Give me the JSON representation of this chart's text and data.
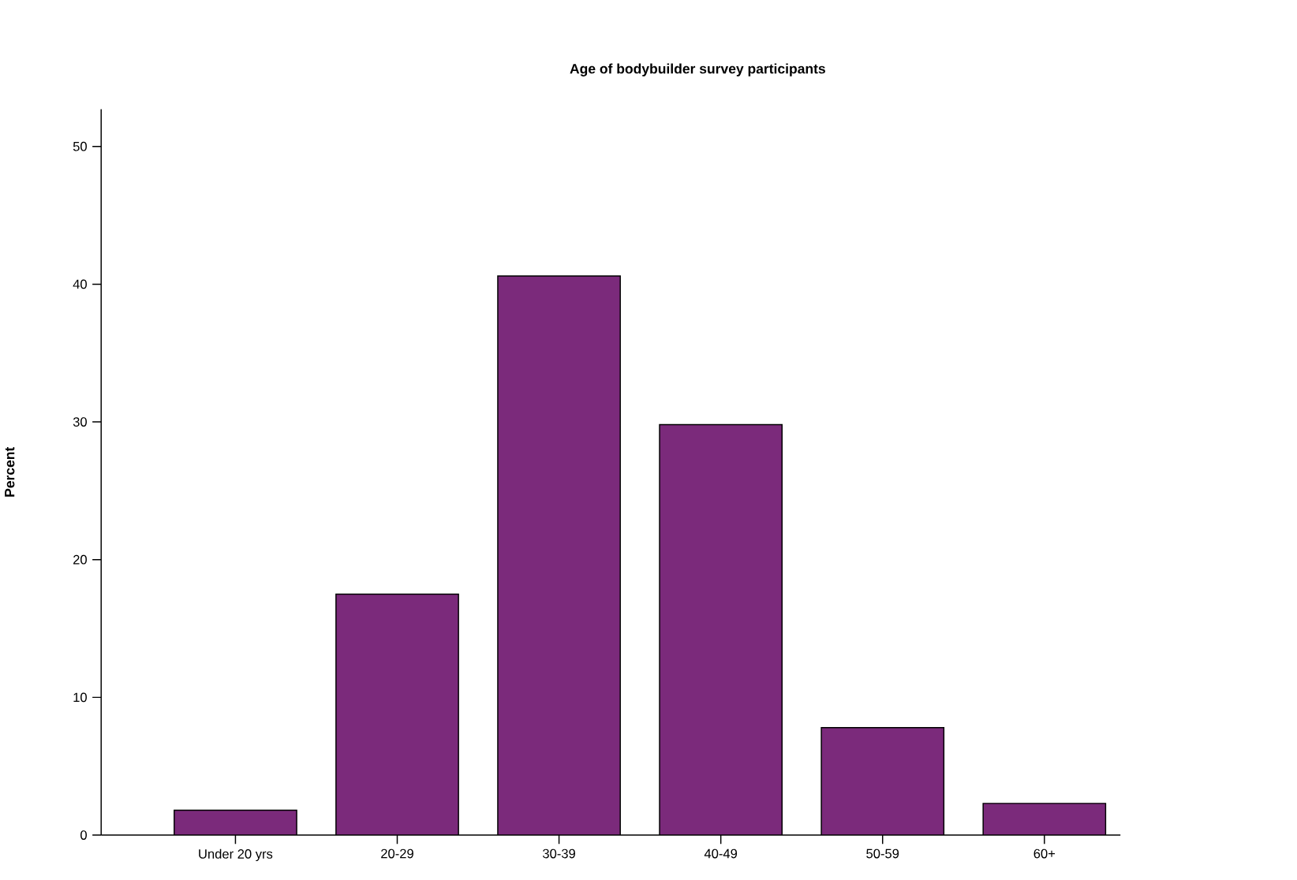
{
  "chart_data": {
    "type": "bar",
    "title": "Age of bodybuilder survey participants",
    "ylabel": "Percent",
    "categories": [
      "Under 20 yrs",
      "20-29",
      "30-39",
      "40-49",
      "50-59",
      "60+"
    ],
    "values": [
      1.8,
      17.5,
      40.6,
      29.8,
      7.8,
      2.3
    ],
    "color": "#7b2a7b",
    "ylim": [
      0,
      52.7
    ],
    "yticks": [
      0,
      10,
      20,
      30,
      40,
      50
    ],
    "grid": false
  }
}
